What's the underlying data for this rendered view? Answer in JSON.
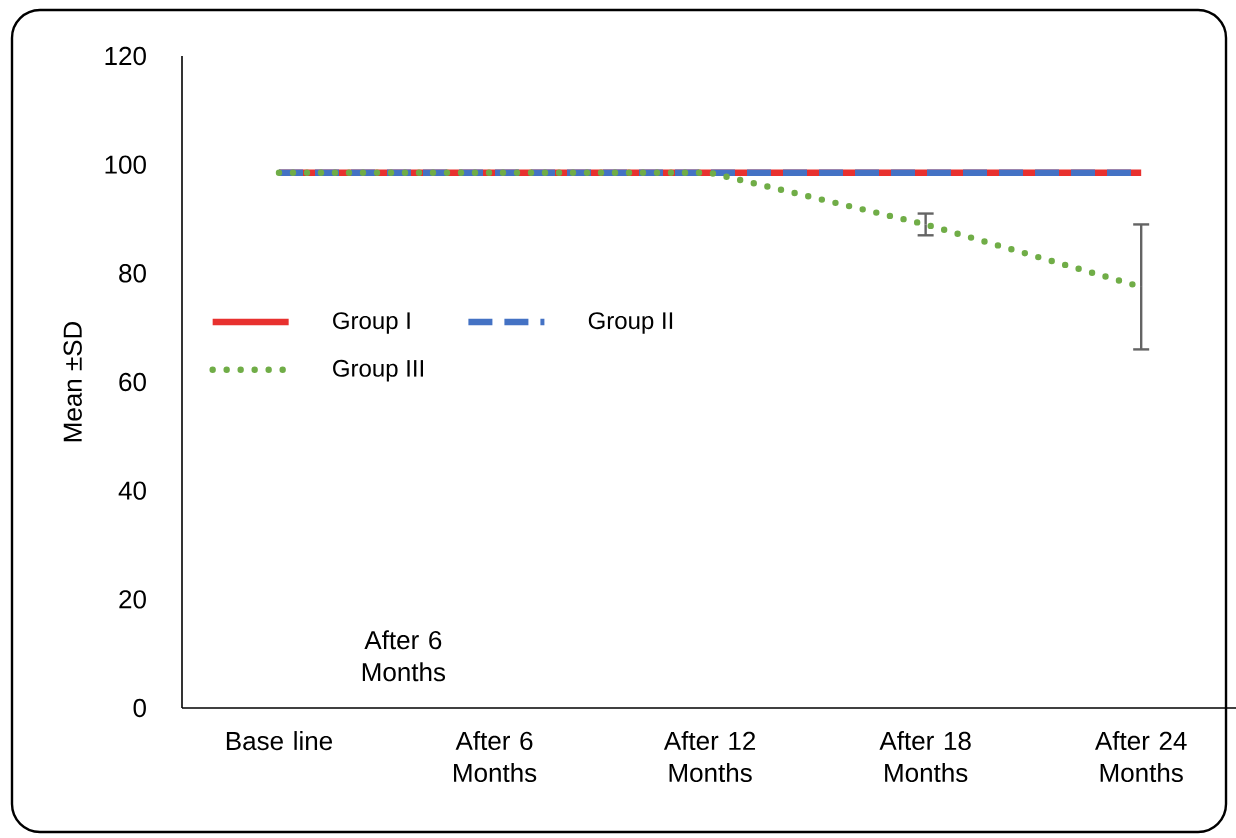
{
  "chart_data": {
    "type": "line",
    "ylabel": "Mean ±SD",
    "categories": [
      "Base line",
      "After 6 Months",
      "After 12 Months",
      "After 18 Months",
      "After 24 Months"
    ],
    "series": [
      {
        "name": "Group I",
        "color": "#e8312f",
        "line_style": "solid",
        "values": [
          98.5,
          98.5,
          98.5,
          98.5,
          98.5
        ]
      },
      {
        "name": "Group II",
        "color": "#4472c4",
        "line_style": "dashed",
        "values": [
          98.5,
          98.5,
          98.5,
          98.5,
          98.5
        ]
      },
      {
        "name": "Group III",
        "color": "#70ad47",
        "line_style": "dotted",
        "values": [
          98.5,
          98.5,
          98.5,
          89,
          77.5
        ],
        "errors": [
          null,
          null,
          null,
          2,
          11.5
        ]
      }
    ],
    "ylim": [
      0,
      120
    ],
    "yticks": [
      0,
      20,
      40,
      60,
      80,
      100,
      120
    ],
    "grid": false,
    "legend": "left",
    "marker": "none",
    "annotations": [
      "After 6 Months"
    ]
  }
}
